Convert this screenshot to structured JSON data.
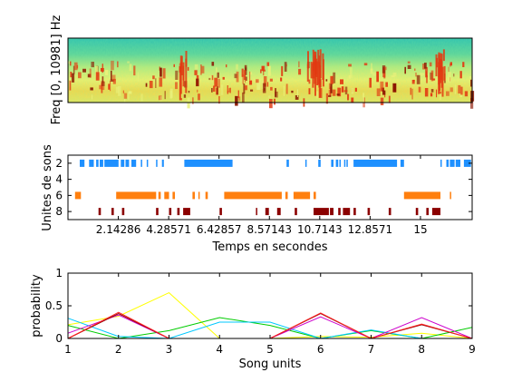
{
  "chart_data": [
    {
      "type": "heatmap",
      "ylabel": "Freq [0, 10981] Hz",
      "xlabel": "",
      "colors": {
        "background": "#2ec0b0",
        "mid": "#e8f07a",
        "hot": "#e23a12",
        "dark": "#8a1400"
      }
    },
    {
      "type": "scatter",
      "ylabel": "Unites de sons",
      "xlabel": "Temps en secondes",
      "xlim": [
        0,
        17.2
      ],
      "ylim": [
        1,
        9
      ],
      "ytick_labels": [
        "2",
        "4",
        "6",
        "8"
      ],
      "xtick_labels": [
        "2.14286",
        "4.28571",
        "6.42857",
        "8.57143",
        "10.7143",
        "12.8571",
        "15"
      ],
      "series": [
        {
          "unit": 2,
          "color": "#1e90ff",
          "segments": [
            [
              0.5,
              0.7
            ],
            [
              0.9,
              1.1
            ],
            [
              1.2,
              1.3
            ],
            [
              1.35,
              1.5
            ],
            [
              1.55,
              2.15
            ],
            [
              2.25,
              2.4
            ],
            [
              2.45,
              2.6
            ],
            [
              2.7,
              2.9
            ],
            [
              3.1,
              3.15
            ],
            [
              3.35,
              3.4
            ],
            [
              3.75,
              3.8
            ],
            [
              4.0,
              4.08
            ],
            [
              4.95,
              7.0
            ],
            [
              9.3,
              9.4
            ],
            [
              10.1,
              10.15
            ],
            [
              10.65,
              10.75
            ],
            [
              11.2,
              11.3
            ],
            [
              11.4,
              11.5
            ],
            [
              11.55,
              11.6
            ],
            [
              11.75,
              11.8
            ],
            [
              11.85,
              11.9
            ],
            [
              12.15,
              14.0
            ],
            [
              14.15,
              14.3
            ],
            [
              15.85,
              15.9
            ],
            [
              16.1,
              16.2
            ],
            [
              16.25,
              16.45
            ],
            [
              16.5,
              16.7
            ],
            [
              16.85,
              17.15
            ]
          ]
        },
        {
          "unit": 6,
          "color": "#ff7f0e",
          "segments": [
            [
              0.3,
              0.55
            ],
            [
              2.05,
              3.75
            ],
            [
              3.85,
              3.95
            ],
            [
              4.1,
              4.3
            ],
            [
              4.45,
              4.55
            ],
            [
              5.3,
              5.4
            ],
            [
              5.55,
              5.6
            ],
            [
              5.85,
              5.95
            ],
            [
              6.65,
              9.1
            ],
            [
              9.25,
              9.35
            ],
            [
              9.6,
              10.3
            ],
            [
              10.45,
              10.55
            ],
            [
              14.3,
              15.85
            ],
            [
              16.25,
              16.3
            ]
          ]
        },
        {
          "unit": 8,
          "color": "#8b0000",
          "segments": [
            [
              1.3,
              1.4
            ],
            [
              1.85,
              1.95
            ],
            [
              2.3,
              2.4
            ],
            [
              3.75,
              3.85
            ],
            [
              4.3,
              4.4
            ],
            [
              4.65,
              4.75
            ],
            [
              4.9,
              5.2
            ],
            [
              6.45,
              6.55
            ],
            [
              8.0,
              8.05
            ],
            [
              8.4,
              8.55
            ],
            [
              8.9,
              9.05
            ],
            [
              9.65,
              9.75
            ],
            [
              10.45,
              11.1
            ],
            [
              11.15,
              11.3
            ],
            [
              11.5,
              11.6
            ],
            [
              11.7,
              12.0
            ],
            [
              12.15,
              12.25
            ],
            [
              12.75,
              12.85
            ],
            [
              13.65,
              13.75
            ],
            [
              14.8,
              14.9
            ],
            [
              15.25,
              15.35
            ],
            [
              15.5,
              15.85
            ]
          ]
        }
      ]
    },
    {
      "type": "line",
      "ylabel": "probability",
      "xlabel": "Song units",
      "x": [
        1,
        2,
        3,
        4,
        5,
        6,
        7,
        8,
        9
      ],
      "ylim": [
        0,
        1
      ],
      "xtick_labels": [
        "1",
        "2",
        "3",
        "4",
        "5",
        "6",
        "7",
        "8",
        "9"
      ],
      "ytick_labels": [
        "0",
        "0.5",
        "1"
      ],
      "series": [
        {
          "color": "#ffff00",
          "values": [
            0.21,
            0.34,
            0.7,
            0.0,
            0.0,
            0.03,
            0.02,
            0.08,
            0.0
          ]
        },
        {
          "color": "#00cc00",
          "values": [
            0.2,
            0.0,
            0.12,
            0.32,
            0.2,
            0.0,
            0.12,
            0.0,
            0.17
          ]
        },
        {
          "color": "#00c8ff",
          "values": [
            0.31,
            0.03,
            0.0,
            0.25,
            0.25,
            0.0,
            0.13,
            0.0,
            0.0
          ]
        },
        {
          "color": "#cc00cc",
          "values": [
            0.08,
            0.36,
            0.0,
            0.0,
            0.0,
            0.33,
            0.0,
            0.32,
            0.0
          ]
        },
        {
          "color": "#8b0000",
          "values": [
            0.0,
            0.38,
            0.0,
            0.0,
            0.0,
            0.38,
            0.0,
            0.21,
            0.0
          ]
        },
        {
          "color": "#ff2020",
          "values": [
            0.0,
            0.4,
            0.0,
            0.0,
            0.0,
            0.39,
            0.0,
            0.22,
            0.0
          ]
        }
      ]
    }
  ]
}
